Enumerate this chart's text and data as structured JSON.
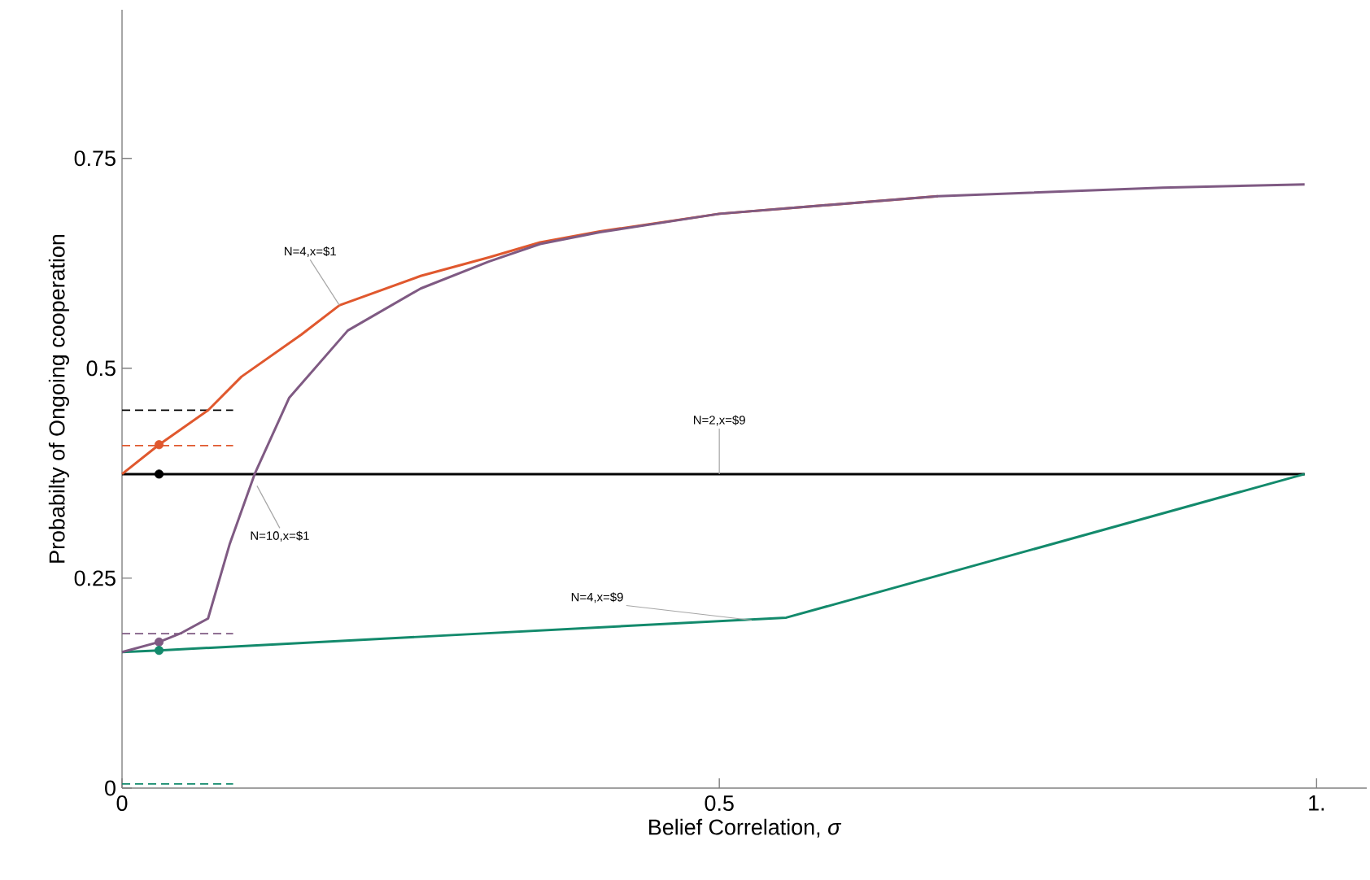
{
  "chart_data": {
    "type": "line",
    "xlabel": "Belief Correlation, *σ*",
    "ylabel": "Probabilty of Ongoing cooperation",
    "xlim": [
      0,
      1.042
    ],
    "ylim": [
      0,
      0.927
    ],
    "xticks": [
      0,
      0.5,
      {
        "value": 1,
        "label": "1."
      }
    ],
    "yticks": [
      0,
      0.25,
      0.5,
      0.75
    ],
    "grid": false,
    "series": [
      {
        "color": "#000000",
        "line_style": "dashed",
        "x": [
          0,
          0.093
        ],
        "values": [
          0.45,
          0.45
        ]
      },
      {
        "color": "#e0582e",
        "line_style": "dashed",
        "x": [
          0,
          0.093
        ],
        "values": [
          0.408,
          0.408
        ]
      },
      {
        "color": "#7f5a83",
        "line_style": "dashed",
        "x": [
          0,
          0.093
        ],
        "values": [
          0.184,
          0.184
        ]
      },
      {
        "color": "#138a6c",
        "line_style": "dashed",
        "x": [
          0,
          0.093
        ],
        "values": [
          0.005,
          0.005
        ]
      },
      {
        "color": "#000000",
        "x": [
          0,
          0.99
        ],
        "values": [
          0.374,
          0.374
        ]
      },
      {
        "color": "#138a6c",
        "x": [
          0,
          0.031,
          0.556,
          0.99
        ],
        "values": [
          0.162,
          0.164,
          0.203,
          0.374
        ]
      },
      {
        "color": "#e0582e",
        "x": [
          0,
          0.031,
          0.072,
          0.1,
          0.15,
          0.182,
          0.25,
          0.307,
          0.35,
          0.4,
          0.5,
          0.683
        ],
        "values": [
          0.374,
          0.409,
          0.45,
          0.49,
          0.54,
          0.575,
          0.61,
          0.632,
          0.65,
          0.663,
          0.684,
          0.705
        ]
      },
      {
        "color": "#7f5a83",
        "x": [
          0,
          0.031,
          0.05,
          0.072,
          0.09,
          0.111,
          0.14,
          0.189,
          0.25,
          0.307,
          0.35,
          0.4,
          0.5,
          0.683,
          0.871,
          0.99
        ],
        "values": [
          0.162,
          0.174,
          0.185,
          0.202,
          0.29,
          0.374,
          0.465,
          0.545,
          0.595,
          0.627,
          0.648,
          0.662,
          0.684,
          0.705,
          0.715,
          0.719
        ]
      },
      {
        "type": "scatter",
        "marker": "circle",
        "color": "#e0582e",
        "x": [
          0.031
        ],
        "values": [
          0.409
        ]
      },
      {
        "type": "scatter",
        "marker": "circle",
        "color": "#000000",
        "x": [
          0.031
        ],
        "values": [
          0.374
        ]
      },
      {
        "type": "scatter",
        "marker": "circle",
        "color": "#7f5a83",
        "x": [
          0.031
        ],
        "values": [
          0.174
        ]
      },
      {
        "type": "scatter",
        "marker": "circle",
        "color": "#138a6c",
        "x": [
          0.031
        ],
        "values": [
          0.164
        ]
      }
    ],
    "annotations": [
      {
        "text": "N=4,x=$1",
        "x": 0.182,
        "y": 0.575
      },
      {
        "text": "N=10,x=$1",
        "x": 0.113,
        "y": 0.36
      },
      {
        "text": "N=2,x=$9",
        "x": 0.5,
        "y": 0.374
      },
      {
        "text": "N=4,x=$9",
        "x": 0.527,
        "y": 0.2
      }
    ]
  }
}
